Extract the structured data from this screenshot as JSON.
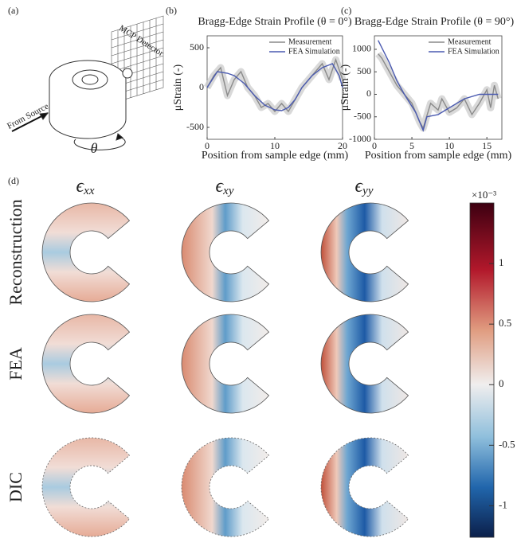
{
  "panels": {
    "a": "(a)",
    "b": "(b)",
    "c": "(c)",
    "d": "(d)"
  },
  "schematic": {
    "detector": "MCP Detector",
    "source": "From Source",
    "rotation": "θ"
  },
  "chart_data": [
    {
      "type": "line",
      "title": "Bragg-Edge Strain Profile (θ = 0°)",
      "x_label": "Position from sample edge (mm)",
      "y_label": "μStrain (-)",
      "xlim": [
        0,
        20
      ],
      "xticks": [
        0,
        10,
        20
      ],
      "ylim": [
        -650,
        650
      ],
      "yticks": [
        -500,
        0,
        500
      ],
      "series": [
        {
          "name": "Measurement",
          "color": "#8a8a8a",
          "x": [
            0,
            1,
            2,
            3,
            4,
            5,
            6,
            7,
            8,
            9,
            10,
            11,
            12,
            13,
            14,
            15,
            16,
            17,
            18,
            19,
            20
          ],
          "values": [
            0,
            150,
            250,
            -100,
            100,
            200,
            0,
            -100,
            -250,
            -200,
            -300,
            -200,
            -300,
            -150,
            0,
            100,
            200,
            300,
            100,
            350,
            100
          ]
        },
        {
          "name": "FEA Simulation",
          "color": "#4a5ab0",
          "x": [
            0,
            1.5,
            3,
            4,
            5.5,
            7,
            8.5,
            10,
            11,
            12,
            13,
            14,
            15.5,
            17,
            18.5,
            19.5,
            20
          ],
          "values": [
            0,
            200,
            180,
            150,
            50,
            -100,
            -220,
            -280,
            -290,
            -250,
            -150,
            0,
            150,
            250,
            300,
            150,
            0
          ]
        }
      ]
    },
    {
      "type": "line",
      "title": "Bragg-Edge Strain Profile (θ = 90°)",
      "x_label": "Position from sample edge (mm)",
      "y_label": "μStrain (-)",
      "xlim": [
        0,
        17
      ],
      "xticks": [
        0,
        5,
        10,
        15
      ],
      "ylim": [
        -1000,
        1300
      ],
      "yticks": [
        -1000,
        -500,
        0,
        500,
        1000
      ],
      "series": [
        {
          "name": "Measurement",
          "color": "#8a8a8a",
          "x": [
            0.5,
            1,
            2,
            3,
            4,
            5,
            6,
            6.5,
            7.5,
            8.5,
            9,
            10,
            11,
            12,
            13,
            14,
            15,
            15.5,
            16,
            16.5
          ],
          "values": [
            900,
            800,
            500,
            200,
            0,
            -200,
            -600,
            -750,
            -200,
            -350,
            -100,
            -400,
            -300,
            -100,
            -450,
            -200,
            100,
            -300,
            200,
            -100
          ]
        },
        {
          "name": "FEA Simulation",
          "color": "#4a5ab0",
          "x": [
            0.5,
            2,
            3,
            4,
            5.5,
            6.5,
            7,
            8.5,
            10,
            12,
            14,
            16.5
          ],
          "values": [
            1200,
            700,
            300,
            0,
            -400,
            -800,
            -500,
            -450,
            -300,
            -100,
            0,
            0
          ]
        }
      ]
    }
  ],
  "maps": {
    "columns": [
      {
        "symbol": "ϵ",
        "subscript": "xx"
      },
      {
        "symbol": "ϵ",
        "subscript": "xy"
      },
      {
        "symbol": "ϵ",
        "subscript": "yy"
      }
    ],
    "rows": [
      "Reconstruction",
      "FEA",
      "DIC"
    ]
  },
  "colorbar": {
    "scale_label": "×10⁻³",
    "lim": [
      -1.26,
      1.5
    ],
    "ticks": [
      -1,
      -0.5,
      0,
      0.5,
      1
    ]
  }
}
